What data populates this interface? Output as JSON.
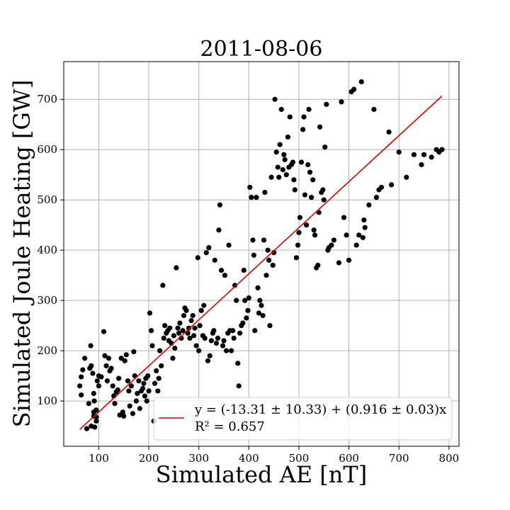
{
  "chart_data": {
    "type": "scatter",
    "title": "2011-08-06",
    "xlabel": "Simulated AE [nT]",
    "ylabel": "Simulated Joule Heating [GW]",
    "xlim": [
      30,
      820
    ],
    "ylim": [
      10,
      775
    ],
    "xticks": [
      100,
      200,
      300,
      400,
      500,
      600,
      700,
      800
    ],
    "yticks": [
      100,
      200,
      300,
      400,
      500,
      600,
      700
    ],
    "grid": true,
    "legend_position": "lower-right",
    "colors": {
      "points": "#000000",
      "fit_line": "#e00000",
      "grid": "#b0b0b0"
    },
    "fit": {
      "intercept": -13.31,
      "slope": 0.916,
      "x_range": [
        62,
        786
      ],
      "label": "y = (-13.31 ± 10.33) + (0.916 ± 0.03)x",
      "r2_label": "R² = 0.657"
    },
    "points": [
      [
        62,
        130
      ],
      [
        65,
        112
      ],
      [
        65,
        148
      ],
      [
        68,
        162
      ],
      [
        72,
        185
      ],
      [
        76,
        45
      ],
      [
        80,
        95
      ],
      [
        82,
        165
      ],
      [
        84,
        210
      ],
      [
        85,
        50
      ],
      [
        85,
        170
      ],
      [
        88,
        155
      ],
      [
        90,
        70
      ],
      [
        90,
        78
      ],
      [
        90,
        115
      ],
      [
        91,
        100
      ],
      [
        92,
        48
      ],
      [
        95,
        60
      ],
      [
        95,
        68
      ],
      [
        95,
        82
      ],
      [
        97,
        140
      ],
      [
        100,
        130
      ],
      [
        100,
        150
      ],
      [
        105,
        148
      ],
      [
        110,
        238
      ],
      [
        112,
        190
      ],
      [
        115,
        170
      ],
      [
        117,
        140
      ],
      [
        120,
        185
      ],
      [
        122,
        160
      ],
      [
        125,
        165
      ],
      [
        128,
        130
      ],
      [
        130,
        110
      ],
      [
        132,
        95
      ],
      [
        135,
        118
      ],
      [
        138,
        122
      ],
      [
        140,
        145
      ],
      [
        142,
        72
      ],
      [
        145,
        185
      ],
      [
        148,
        78
      ],
      [
        150,
        70
      ],
      [
        152,
        180
      ],
      [
        155,
        192
      ],
      [
        158,
        140
      ],
      [
        160,
        120
      ],
      [
        162,
        90
      ],
      [
        165,
        130
      ],
      [
        168,
        75
      ],
      [
        170,
        198
      ],
      [
        172,
        150
      ],
      [
        175,
        100
      ],
      [
        177,
        115
      ],
      [
        180,
        140
      ],
      [
        182,
        85
      ],
      [
        185,
        120
      ],
      [
        188,
        125
      ],
      [
        190,
        135
      ],
      [
        192,
        110
      ],
      [
        194,
        145
      ],
      [
        196,
        100
      ],
      [
        198,
        150
      ],
      [
        200,
        120
      ],
      [
        202,
        275
      ],
      [
        205,
        240
      ],
      [
        207,
        210
      ],
      [
        210,
        60
      ],
      [
        212,
        135
      ],
      [
        215,
        160
      ],
      [
        218,
        120
      ],
      [
        220,
        145
      ],
      [
        222,
        200
      ],
      [
        225,
        170
      ],
      [
        228,
        330
      ],
      [
        230,
        225
      ],
      [
        232,
        250
      ],
      [
        235,
        235
      ],
      [
        238,
        240
      ],
      [
        240,
        220
      ],
      [
        242,
        245
      ],
      [
        245,
        215
      ],
      [
        248,
        185
      ],
      [
        250,
        230
      ],
      [
        252,
        205
      ],
      [
        255,
        365
      ],
      [
        258,
        245
      ],
      [
        260,
        235
      ],
      [
        262,
        255
      ],
      [
        265,
        225
      ],
      [
        268,
        240
      ],
      [
        270,
        270
      ],
      [
        272,
        285
      ],
      [
        275,
        280
      ],
      [
        278,
        235
      ],
      [
        280,
        245
      ],
      [
        282,
        225
      ],
      [
        285,
        260
      ],
      [
        288,
        270
      ],
      [
        290,
        230
      ],
      [
        292,
        245
      ],
      [
        295,
        210
      ],
      [
        298,
        385
      ],
      [
        300,
        200
      ],
      [
        302,
        250
      ],
      [
        305,
        280
      ],
      [
        308,
        230
      ],
      [
        310,
        290
      ],
      [
        312,
        225
      ],
      [
        315,
        395
      ],
      [
        318,
        180
      ],
      [
        320,
        405
      ],
      [
        322,
        190
      ],
      [
        325,
        220
      ],
      [
        328,
        235
      ],
      [
        330,
        240
      ],
      [
        332,
        380
      ],
      [
        335,
        215
      ],
      [
        338,
        225
      ],
      [
        340,
        440
      ],
      [
        342,
        490
      ],
      [
        345,
        360
      ],
      [
        348,
        210
      ],
      [
        350,
        220
      ],
      [
        352,
        350
      ],
      [
        355,
        200
      ],
      [
        358,
        235
      ],
      [
        360,
        410
      ],
      [
        362,
        240
      ],
      [
        365,
        200
      ],
      [
        368,
        240
      ],
      [
        370,
        225
      ],
      [
        372,
        330
      ],
      [
        375,
        300
      ],
      [
        378,
        175
      ],
      [
        380,
        130
      ],
      [
        382,
        235
      ],
      [
        385,
        250
      ],
      [
        388,
        255
      ],
      [
        390,
        360
      ],
      [
        392,
        300
      ],
      [
        395,
        265
      ],
      [
        398,
        280
      ],
      [
        400,
        305
      ],
      [
        402,
        525
      ],
      [
        405,
        505
      ],
      [
        408,
        420
      ],
      [
        410,
        390
      ],
      [
        412,
        240
      ],
      [
        415,
        505
      ],
      [
        418,
        325
      ],
      [
        420,
        275
      ],
      [
        422,
        300
      ],
      [
        425,
        290
      ],
      [
        428,
        270
      ],
      [
        430,
        420
      ],
      [
        432,
        515
      ],
      [
        435,
        350
      ],
      [
        438,
        400
      ],
      [
        440,
        380
      ],
      [
        442,
        250
      ],
      [
        445,
        545
      ],
      [
        448,
        370
      ],
      [
        450,
        395
      ],
      [
        452,
        700
      ],
      [
        455,
        595
      ],
      [
        458,
        565
      ],
      [
        460,
        545
      ],
      [
        462,
        610
      ],
      [
        465,
        680
      ],
      [
        468,
        560
      ],
      [
        470,
        590
      ],
      [
        472,
        580
      ],
      [
        475,
        550
      ],
      [
        478,
        625
      ],
      [
        480,
        565
      ],
      [
        482,
        665
      ],
      [
        485,
        570
      ],
      [
        488,
        575
      ],
      [
        490,
        540
      ],
      [
        492,
        520
      ],
      [
        495,
        385
      ],
      [
        498,
        410
      ],
      [
        500,
        435
      ],
      [
        502,
        465
      ],
      [
        505,
        575
      ],
      [
        508,
        640
      ],
      [
        510,
        665
      ],
      [
        512,
        510
      ],
      [
        515,
        450
      ],
      [
        518,
        570
      ],
      [
        520,
        680
      ],
      [
        522,
        555
      ],
      [
        525,
        505
      ],
      [
        528,
        540
      ],
      [
        530,
        440
      ],
      [
        532,
        430
      ],
      [
        535,
        365
      ],
      [
        538,
        370
      ],
      [
        540,
        475
      ],
      [
        542,
        645
      ],
      [
        545,
        515
      ],
      [
        548,
        520
      ],
      [
        550,
        500
      ],
      [
        552,
        605
      ],
      [
        555,
        690
      ],
      [
        558,
        400
      ],
      [
        560,
        405
      ],
      [
        565,
        410
      ],
      [
        570,
        420
      ],
      [
        580,
        375
      ],
      [
        585,
        695
      ],
      [
        590,
        465
      ],
      [
        595,
        430
      ],
      [
        600,
        380
      ],
      [
        605,
        715
      ],
      [
        610,
        720
      ],
      [
        615,
        410
      ],
      [
        620,
        430
      ],
      [
        625,
        735
      ],
      [
        628,
        425
      ],
      [
        630,
        460
      ],
      [
        632,
        445
      ],
      [
        640,
        490
      ],
      [
        650,
        680
      ],
      [
        655,
        505
      ],
      [
        660,
        520
      ],
      [
        665,
        525
      ],
      [
        680,
        635
      ],
      [
        685,
        530
      ],
      [
        700,
        595
      ],
      [
        715,
        545
      ],
      [
        730,
        590
      ],
      [
        745,
        570
      ],
      [
        750,
        590
      ],
      [
        765,
        585
      ],
      [
        775,
        600
      ],
      [
        780,
        595
      ],
      [
        786,
        600
      ]
    ]
  }
}
